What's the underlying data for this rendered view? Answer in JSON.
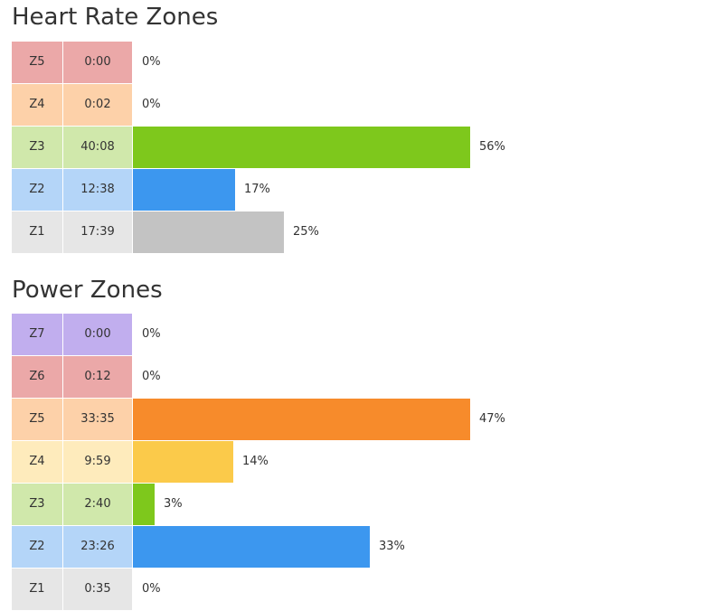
{
  "heart_rate_zones": {
    "title": "Heart Rate Zones",
    "rows": [
      {
        "zone": "Z5",
        "time": "0:00",
        "percent_label": "0%",
        "value": 0,
        "cell_color": "#eba8a8",
        "bar_color": "#e57373"
      },
      {
        "zone": "Z4",
        "time": "0:02",
        "percent_label": "0%",
        "value": 0,
        "cell_color": "#fdd1a9",
        "bar_color": "#f78b2b"
      },
      {
        "zone": "Z3",
        "time": "40:08",
        "percent_label": "56%",
        "value": 56,
        "cell_color": "#d0e8ab",
        "bar_color": "#7ec81c"
      },
      {
        "zone": "Z2",
        "time": "12:38",
        "percent_label": "17%",
        "value": 17,
        "cell_color": "#b4d5f8",
        "bar_color": "#3c97ef"
      },
      {
        "zone": "Z1",
        "time": "17:39",
        "percent_label": "25%",
        "value": 25,
        "cell_color": "#e6e6e6",
        "bar_color": "#c3c3c3"
      }
    ]
  },
  "power_zones": {
    "title": "Power Zones",
    "rows": [
      {
        "zone": "Z7",
        "time": "0:00",
        "percent_label": "0%",
        "value": 0,
        "cell_color": "#c1aeee",
        "bar_color": "#9a7ee0"
      },
      {
        "zone": "Z6",
        "time": "0:12",
        "percent_label": "0%",
        "value": 0,
        "cell_color": "#eba8a8",
        "bar_color": "#e57373"
      },
      {
        "zone": "Z5",
        "time": "33:35",
        "percent_label": "47%",
        "value": 47,
        "cell_color": "#fdd1a9",
        "bar_color": "#f78b2b"
      },
      {
        "zone": "Z4",
        "time": "9:59",
        "percent_label": "14%",
        "value": 14,
        "cell_color": "#feebbc",
        "bar_color": "#fbca4a"
      },
      {
        "zone": "Z3",
        "time": "2:40",
        "percent_label": "3%",
        "value": 3,
        "cell_color": "#d0e8ab",
        "bar_color": "#7ec81c"
      },
      {
        "zone": "Z2",
        "time": "23:26",
        "percent_label": "33%",
        "value": 33,
        "cell_color": "#b4d5f8",
        "bar_color": "#3c97ef"
      },
      {
        "zone": "Z1",
        "time": "0:35",
        "percent_label": "0%",
        "value": 0,
        "cell_color": "#e6e6e6",
        "bar_color": "#c3c3c3"
      }
    ]
  },
  "chart_data": [
    {
      "type": "bar",
      "orientation": "horizontal",
      "title": "Heart Rate Zones",
      "categories": [
        "Z5",
        "Z4",
        "Z3",
        "Z2",
        "Z1"
      ],
      "times": [
        "0:00",
        "0:02",
        "40:08",
        "12:38",
        "17:39"
      ],
      "values": [
        0,
        0,
        56,
        17,
        25
      ],
      "value_labels": [
        "0%",
        "0%",
        "56%",
        "17%",
        "25%"
      ],
      "xlim": [
        0,
        56
      ],
      "grid": false
    },
    {
      "type": "bar",
      "orientation": "horizontal",
      "title": "Power Zones",
      "categories": [
        "Z7",
        "Z6",
        "Z5",
        "Z4",
        "Z3",
        "Z2",
        "Z1"
      ],
      "times": [
        "0:00",
        "0:12",
        "33:35",
        "9:59",
        "2:40",
        "23:26",
        "0:35"
      ],
      "values": [
        0,
        0,
        47,
        14,
        3,
        33,
        0
      ],
      "value_labels": [
        "0%",
        "0%",
        "47%",
        "14%",
        "3%",
        "33%",
        "0%"
      ],
      "xlim": [
        0,
        47
      ],
      "grid": false
    }
  ]
}
